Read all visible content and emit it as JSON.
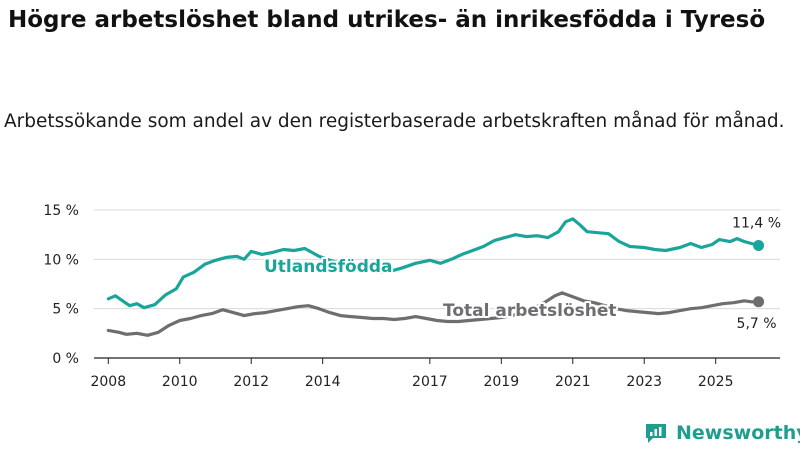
{
  "title": "Högre arbetslöshet bland utrikes- än inrikesfödda i Tyresö",
  "subtitle": "Arbetssökande som andel av den registerbaserade arbetskraften månad för månad.",
  "brand": {
    "name": "Newsworthy"
  },
  "colors": {
    "foreign_born": "#1aa59a",
    "total": "#6e6e72",
    "grid": "#d9d9d9"
  },
  "chart_data": {
    "type": "line",
    "title": "Högre arbetslöshet bland utrikes- än inrikesfödda i Tyresö",
    "subtitle": "Arbetssökande som andel av den registerbaserade arbetskraften månad för månad.",
    "xlabel": "",
    "ylabel": "",
    "xlim": [
      2007.6,
      2026.8
    ],
    "ylim": [
      0,
      15
    ],
    "grid": true,
    "x_ticks": [
      2008,
      2010,
      2012,
      2014,
      2017,
      2019,
      2021,
      2023,
      2025
    ],
    "x_tick_labels": [
      "2008",
      "2010",
      "2012",
      "2014",
      "2017",
      "2019",
      "2021",
      "2023",
      "2025"
    ],
    "y_ticks": [
      0,
      5,
      10,
      15
    ],
    "y_tick_labels": [
      "0 %",
      "5 %",
      "10 %",
      "15 %"
    ],
    "series": [
      {
        "name": "Utlandsfödda",
        "label": "Utlandsfödda",
        "end_label": "11,4 %",
        "points": [
          [
            2008.0,
            6.0
          ],
          [
            2008.2,
            6.3
          ],
          [
            2008.4,
            5.8
          ],
          [
            2008.6,
            5.3
          ],
          [
            2008.8,
            5.5
          ],
          [
            2009.0,
            5.1
          ],
          [
            2009.3,
            5.4
          ],
          [
            2009.6,
            6.4
          ],
          [
            2009.9,
            7.0
          ],
          [
            2010.1,
            8.2
          ],
          [
            2010.4,
            8.7
          ],
          [
            2010.7,
            9.5
          ],
          [
            2011.0,
            9.9
          ],
          [
            2011.3,
            10.2
          ],
          [
            2011.6,
            10.3
          ],
          [
            2011.8,
            10.0
          ],
          [
            2012.0,
            10.8
          ],
          [
            2012.3,
            10.5
          ],
          [
            2012.6,
            10.7
          ],
          [
            2012.9,
            11.0
          ],
          [
            2013.2,
            10.9
          ],
          [
            2013.5,
            11.1
          ],
          [
            2013.7,
            10.7
          ],
          [
            2013.9,
            10.3
          ],
          [
            2014.2,
            9.9
          ],
          [
            2014.6,
            9.5
          ],
          [
            2015.0,
            9.2
          ],
          [
            2015.4,
            8.8
          ],
          [
            2015.8,
            8.7
          ],
          [
            2016.2,
            9.1
          ],
          [
            2016.6,
            9.6
          ],
          [
            2017.0,
            9.9
          ],
          [
            2017.3,
            9.6
          ],
          [
            2017.6,
            10.0
          ],
          [
            2017.9,
            10.5
          ],
          [
            2018.2,
            10.9
          ],
          [
            2018.5,
            11.3
          ],
          [
            2018.8,
            11.9
          ],
          [
            2019.1,
            12.2
          ],
          [
            2019.4,
            12.5
          ],
          [
            2019.7,
            12.3
          ],
          [
            2020.0,
            12.4
          ],
          [
            2020.3,
            12.2
          ],
          [
            2020.6,
            12.8
          ],
          [
            2020.8,
            13.8
          ],
          [
            2021.0,
            14.1
          ],
          [
            2021.2,
            13.5
          ],
          [
            2021.4,
            12.8
          ],
          [
            2021.7,
            12.7
          ],
          [
            2022.0,
            12.6
          ],
          [
            2022.3,
            11.8
          ],
          [
            2022.6,
            11.3
          ],
          [
            2023.0,
            11.2
          ],
          [
            2023.3,
            11.0
          ],
          [
            2023.6,
            10.9
          ],
          [
            2024.0,
            11.2
          ],
          [
            2024.3,
            11.6
          ],
          [
            2024.6,
            11.2
          ],
          [
            2024.9,
            11.5
          ],
          [
            2025.1,
            12.0
          ],
          [
            2025.4,
            11.8
          ],
          [
            2025.6,
            12.1
          ],
          [
            2025.8,
            11.8
          ],
          [
            2026.0,
            11.6
          ],
          [
            2026.2,
            11.4
          ]
        ]
      },
      {
        "name": "Total arbetslöshet",
        "label": "Total arbetslöshet",
        "end_label": "5,7 %",
        "points": [
          [
            2008.0,
            2.8
          ],
          [
            2008.3,
            2.6
          ],
          [
            2008.5,
            2.4
          ],
          [
            2008.8,
            2.5
          ],
          [
            2009.1,
            2.3
          ],
          [
            2009.4,
            2.6
          ],
          [
            2009.7,
            3.3
          ],
          [
            2010.0,
            3.8
          ],
          [
            2010.3,
            4.0
          ],
          [
            2010.6,
            4.3
          ],
          [
            2010.9,
            4.5
          ],
          [
            2011.2,
            4.9
          ],
          [
            2011.5,
            4.6
          ],
          [
            2011.8,
            4.3
          ],
          [
            2012.1,
            4.5
          ],
          [
            2012.4,
            4.6
          ],
          [
            2012.7,
            4.8
          ],
          [
            2013.0,
            5.0
          ],
          [
            2013.3,
            5.2
          ],
          [
            2013.6,
            5.3
          ],
          [
            2013.9,
            5.0
          ],
          [
            2014.2,
            4.6
          ],
          [
            2014.5,
            4.3
          ],
          [
            2014.8,
            4.2
          ],
          [
            2015.1,
            4.1
          ],
          [
            2015.4,
            4.0
          ],
          [
            2015.7,
            4.0
          ],
          [
            2016.0,
            3.9
          ],
          [
            2016.3,
            4.0
          ],
          [
            2016.6,
            4.2
          ],
          [
            2016.9,
            4.0
          ],
          [
            2017.2,
            3.8
          ],
          [
            2017.5,
            3.7
          ],
          [
            2017.8,
            3.7
          ],
          [
            2018.1,
            3.8
          ],
          [
            2018.4,
            3.9
          ],
          [
            2018.7,
            4.0
          ],
          [
            2019.0,
            4.1
          ],
          [
            2019.3,
            4.3
          ],
          [
            2019.6,
            4.6
          ],
          [
            2019.9,
            5.0
          ],
          [
            2020.2,
            5.6
          ],
          [
            2020.5,
            6.3
          ],
          [
            2020.7,
            6.6
          ],
          [
            2021.0,
            6.2
          ],
          [
            2021.3,
            5.8
          ],
          [
            2021.6,
            5.6
          ],
          [
            2021.9,
            5.3
          ],
          [
            2022.2,
            5.0
          ],
          [
            2022.5,
            4.8
          ],
          [
            2022.8,
            4.7
          ],
          [
            2023.1,
            4.6
          ],
          [
            2023.4,
            4.5
          ],
          [
            2023.7,
            4.6
          ],
          [
            2024.0,
            4.8
          ],
          [
            2024.3,
            5.0
          ],
          [
            2024.6,
            5.1
          ],
          [
            2024.9,
            5.3
          ],
          [
            2025.2,
            5.5
          ],
          [
            2025.5,
            5.6
          ],
          [
            2025.8,
            5.8
          ],
          [
            2026.0,
            5.7
          ],
          [
            2026.2,
            5.7
          ]
        ]
      }
    ]
  }
}
